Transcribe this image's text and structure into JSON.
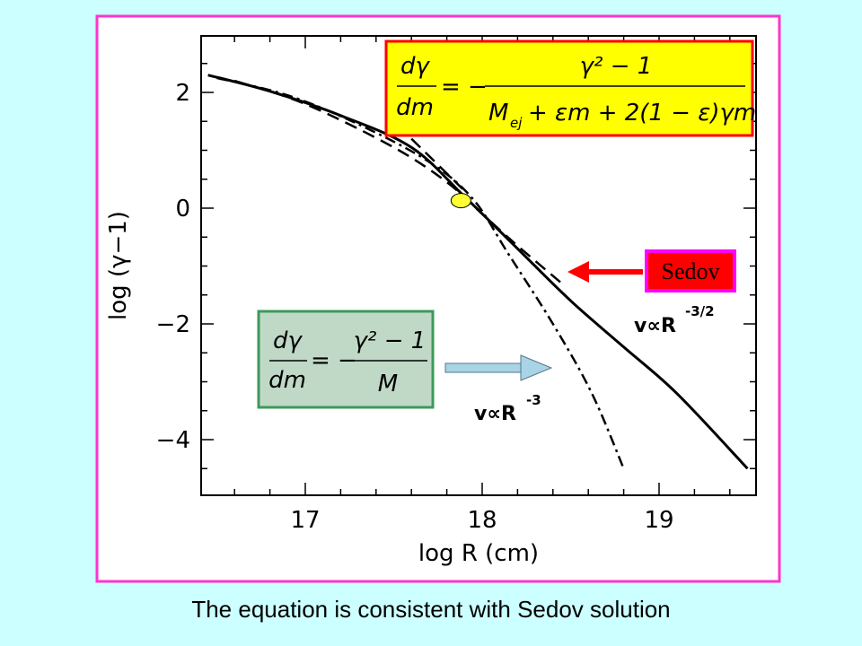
{
  "caption": "The equation is consistent with Sedov solution",
  "colors": {
    "background": "#ccffff",
    "frame": "#ff33cc",
    "yellow_box_fill": "#ffff00",
    "yellow_box_border": "#ff0000",
    "green_box_fill": "#c0d9c6",
    "green_box_border": "#3c9a5a",
    "sedov_fill": "#ff0000",
    "sedov_border": "#ff00ff",
    "arrow_red": "#ff0000",
    "arrow_blue": "#a8d4e6",
    "marker": "#ffff33"
  },
  "sedov_label": "Sedov",
  "chart_data": {
    "type": "line",
    "xlabel": "log R (cm)",
    "ylabel": "log (γ−1)",
    "xlim": [
      16.4,
      19.6
    ],
    "ylim": [
      -5,
      3
    ],
    "x_ticks": [
      17,
      18,
      19
    ],
    "y_ticks": [
      2,
      0,
      -2,
      -4
    ],
    "series": [
      {
        "style": "solid",
        "points": [
          [
            16.45,
            2.3
          ],
          [
            16.8,
            2.02
          ],
          [
            17.2,
            1.6
          ],
          [
            17.6,
            1.05
          ],
          [
            17.9,
            0.2
          ],
          [
            18.2,
            -0.7
          ],
          [
            18.5,
            -1.6
          ],
          [
            18.8,
            -2.4
          ],
          [
            19.1,
            -3.2
          ],
          [
            19.5,
            -4.5
          ]
        ]
      },
      {
        "style": "dashed",
        "points": [
          [
            16.6,
            2.2
          ],
          [
            17.0,
            1.8
          ],
          [
            17.5,
            1.05
          ],
          [
            17.8,
            0.45
          ],
          [
            18.0,
            -0.1
          ],
          [
            18.2,
            -0.65
          ],
          [
            18.45,
            -1.3
          ]
        ]
      },
      {
        "style": "dashed-upper",
        "points": [
          [
            17.6,
            1.2
          ],
          [
            17.9,
            0.3
          ]
        ]
      },
      {
        "style": "dashdot",
        "points": [
          [
            16.5,
            2.25
          ],
          [
            16.9,
            1.95
          ],
          [
            17.3,
            1.45
          ],
          [
            17.7,
            0.8
          ],
          [
            17.95,
            0.15
          ],
          [
            18.15,
            -0.8
          ],
          [
            18.4,
            -2.0
          ],
          [
            18.62,
            -3.2
          ],
          [
            18.8,
            -4.5
          ]
        ]
      }
    ],
    "marker": {
      "x": 17.88,
      "y": 0.13
    },
    "annotations": [
      "v∝R",
      "-3/2",
      "v∝R",
      "-3"
    ]
  },
  "equations": {
    "full": {
      "lhs_num": "dγ",
      "lhs_den": "dm",
      "equals": "= −",
      "rhs_num": "γ² − 1",
      "rhs_den_a": "M",
      "rhs_den_sub": "ej",
      "rhs_den_b": "+ εm + 2(1 − ε)γm"
    },
    "simple": {
      "lhs_num": "dγ",
      "lhs_den": "dm",
      "equals": "= −",
      "rhs_num": "γ² − 1",
      "rhs_den": "M"
    }
  }
}
